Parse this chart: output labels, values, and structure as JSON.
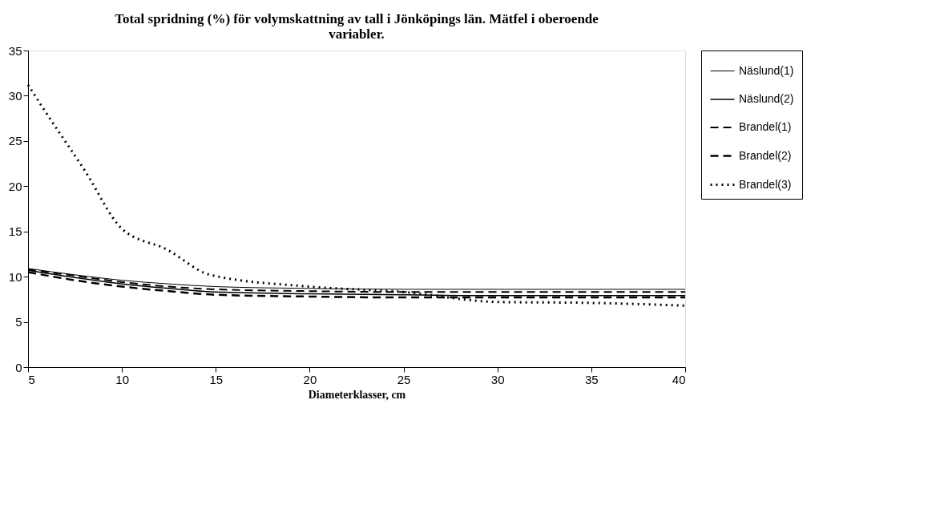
{
  "chart_data": {
    "type": "line",
    "title": "Total spridning (%) för volymskattning av tall i Jönköpings län. Mätfel i oberoende variabler.",
    "xlabel": "Diameterklasser, cm",
    "xlim": [
      5,
      40
    ],
    "xticks": [
      5,
      10,
      15,
      20,
      25,
      30,
      35,
      40
    ],
    "ylim": [
      0,
      35
    ],
    "yticks": [
      0,
      5,
      10,
      15,
      20,
      25,
      30,
      35
    ],
    "grid": false,
    "legend": "right",
    "marker": "none",
    "series": [
      {
        "name": "Näslund(1)",
        "color": "#000000",
        "line_style": "solid",
        "x": [
          5,
          7.5,
          10,
          12.5,
          15,
          20,
          25,
          30,
          35,
          40
        ],
        "values": [
          10.9,
          10.2,
          9.6,
          9.2,
          8.9,
          8.7,
          8.6,
          8.6,
          8.6,
          8.6
        ]
      },
      {
        "name": "Näslund(2)",
        "color": "#000000",
        "line_style": "solid",
        "x": [
          5,
          7.5,
          10,
          12.5,
          15,
          20,
          25,
          30,
          35,
          40
        ],
        "values": [
          10.7,
          9.9,
          9.2,
          8.7,
          8.3,
          8.1,
          8.0,
          7.9,
          7.9,
          7.9
        ]
      },
      {
        "name": "Brandel(1)",
        "color": "#000000",
        "line_style": "dashed",
        "x": [
          5,
          7.5,
          10,
          12.5,
          15,
          20,
          25,
          30,
          35,
          40
        ],
        "values": [
          10.8,
          10.1,
          9.4,
          8.9,
          8.6,
          8.4,
          8.3,
          8.3,
          8.3,
          8.3
        ]
      },
      {
        "name": "Brandel(2)",
        "color": "#000000",
        "line_style": "dashed",
        "x": [
          5,
          7.5,
          10,
          12.5,
          15,
          20,
          25,
          30,
          35,
          40
        ],
        "values": [
          10.5,
          9.6,
          8.9,
          8.4,
          8.0,
          7.8,
          7.7,
          7.7,
          7.7,
          7.7
        ]
      },
      {
        "name": "Brandel(3)",
        "color": "#000000",
        "line_style": "dotted",
        "x": [
          5,
          6,
          8,
          10,
          12.4,
          14.7,
          20,
          25,
          30,
          35,
          40
        ],
        "values": [
          31.2,
          28.0,
          21.8,
          15.3,
          13.0,
          10.2,
          8.9,
          8.3,
          7.2,
          7.1,
          6.8
        ]
      }
    ]
  }
}
